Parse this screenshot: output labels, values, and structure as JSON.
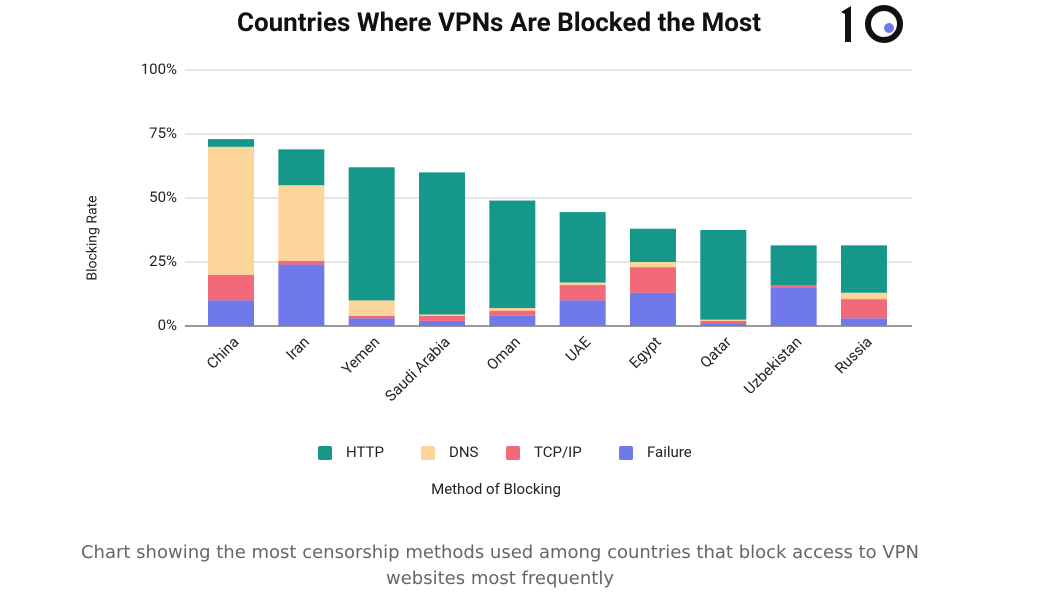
{
  "chart_data": {
    "type": "stacked_bar",
    "title": "Countries Where VPNs Are Blocked the Most",
    "x_label": "Method of Blocking",
    "y_label": "Blocking Rate",
    "categories": [
      "China",
      "Iran",
      "Yemen",
      "Saudi Arabia",
      "Oman",
      "UAE",
      "Egypt",
      "Qatar",
      "Uzbekistan",
      "Russia"
    ],
    "series": [
      {
        "name": "Failure",
        "color": "#6f79ea",
        "values": [
          10,
          24,
          3,
          2,
          4,
          10,
          13,
          1,
          15,
          3
        ]
      },
      {
        "name": "TCP/IP",
        "color": "#f26a7a",
        "values": [
          10,
          1.5,
          1,
          2,
          2,
          6,
          10,
          1,
          1,
          7.5
        ]
      },
      {
        "name": "DNS",
        "color": "#fcd59b",
        "values": [
          50,
          29.5,
          6,
          0.5,
          1,
          1,
          2,
          0.5,
          0,
          2.5
        ]
      },
      {
        "name": "HTTP",
        "color": "#15978a",
        "values": [
          3,
          14,
          52,
          55.5,
          42,
          27.5,
          13,
          35,
          15.5,
          18.5
        ]
      }
    ],
    "legend_order": [
      "HTTP",
      "DNS",
      "TCP/IP",
      "Failure"
    ],
    "ylim": [
      0,
      100
    ],
    "yticks": [
      {
        "value": 0,
        "label": "0%"
      },
      {
        "value": 25,
        "label": "25%"
      },
      {
        "value": 50,
        "label": "50%"
      },
      {
        "value": 75,
        "label": "75%"
      },
      {
        "value": 100,
        "label": "100%"
      }
    ],
    "grid": true,
    "caption": "Chart showing the most censorship methods used among countries that block access to VPN websites most frequently"
  }
}
